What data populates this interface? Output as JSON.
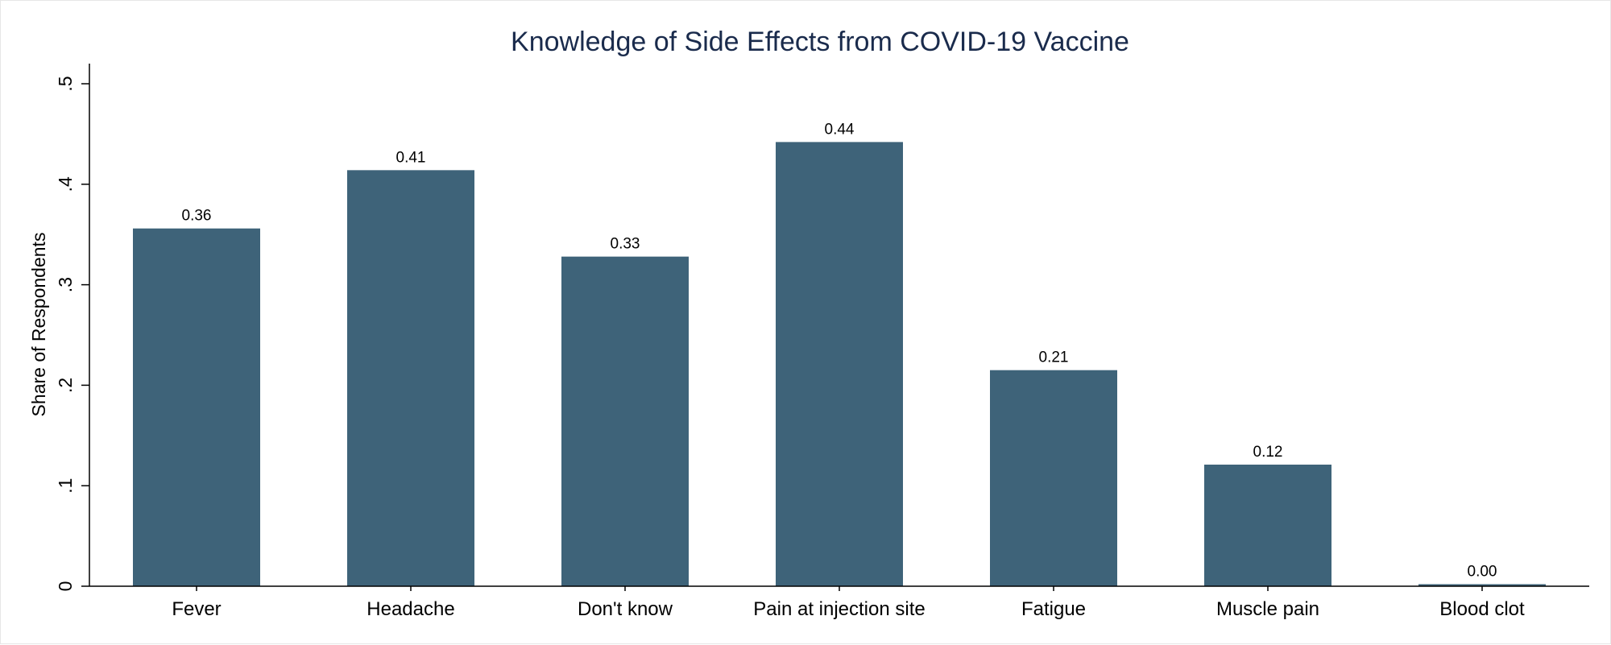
{
  "chart_data": {
    "type": "bar",
    "title": "Knowledge of Side Effects from COVID-19 Vaccine",
    "xlabel": "",
    "ylabel": "Share of Respondents",
    "categories": [
      "Fever",
      "Headache",
      "Don't know",
      "Pain at injection site",
      "Fatigue",
      "Muscle pain",
      "Blood clot"
    ],
    "values": [
      0.356,
      0.414,
      0.328,
      0.442,
      0.215,
      0.121,
      0.002
    ],
    "data_labels": [
      "0.36",
      "0.41",
      "0.33",
      "0.44",
      "0.21",
      "0.12",
      "0.00"
    ],
    "ylim": [
      0,
      0.5
    ],
    "yticks": [
      0,
      0.1,
      0.2,
      0.3,
      0.4,
      0.5
    ],
    "ytick_labels": [
      "0",
      ".1",
      ".2",
      ".3",
      ".4",
      ".5"
    ],
    "bar_color": "#3e6379",
    "grid": false,
    "legend": "none"
  }
}
